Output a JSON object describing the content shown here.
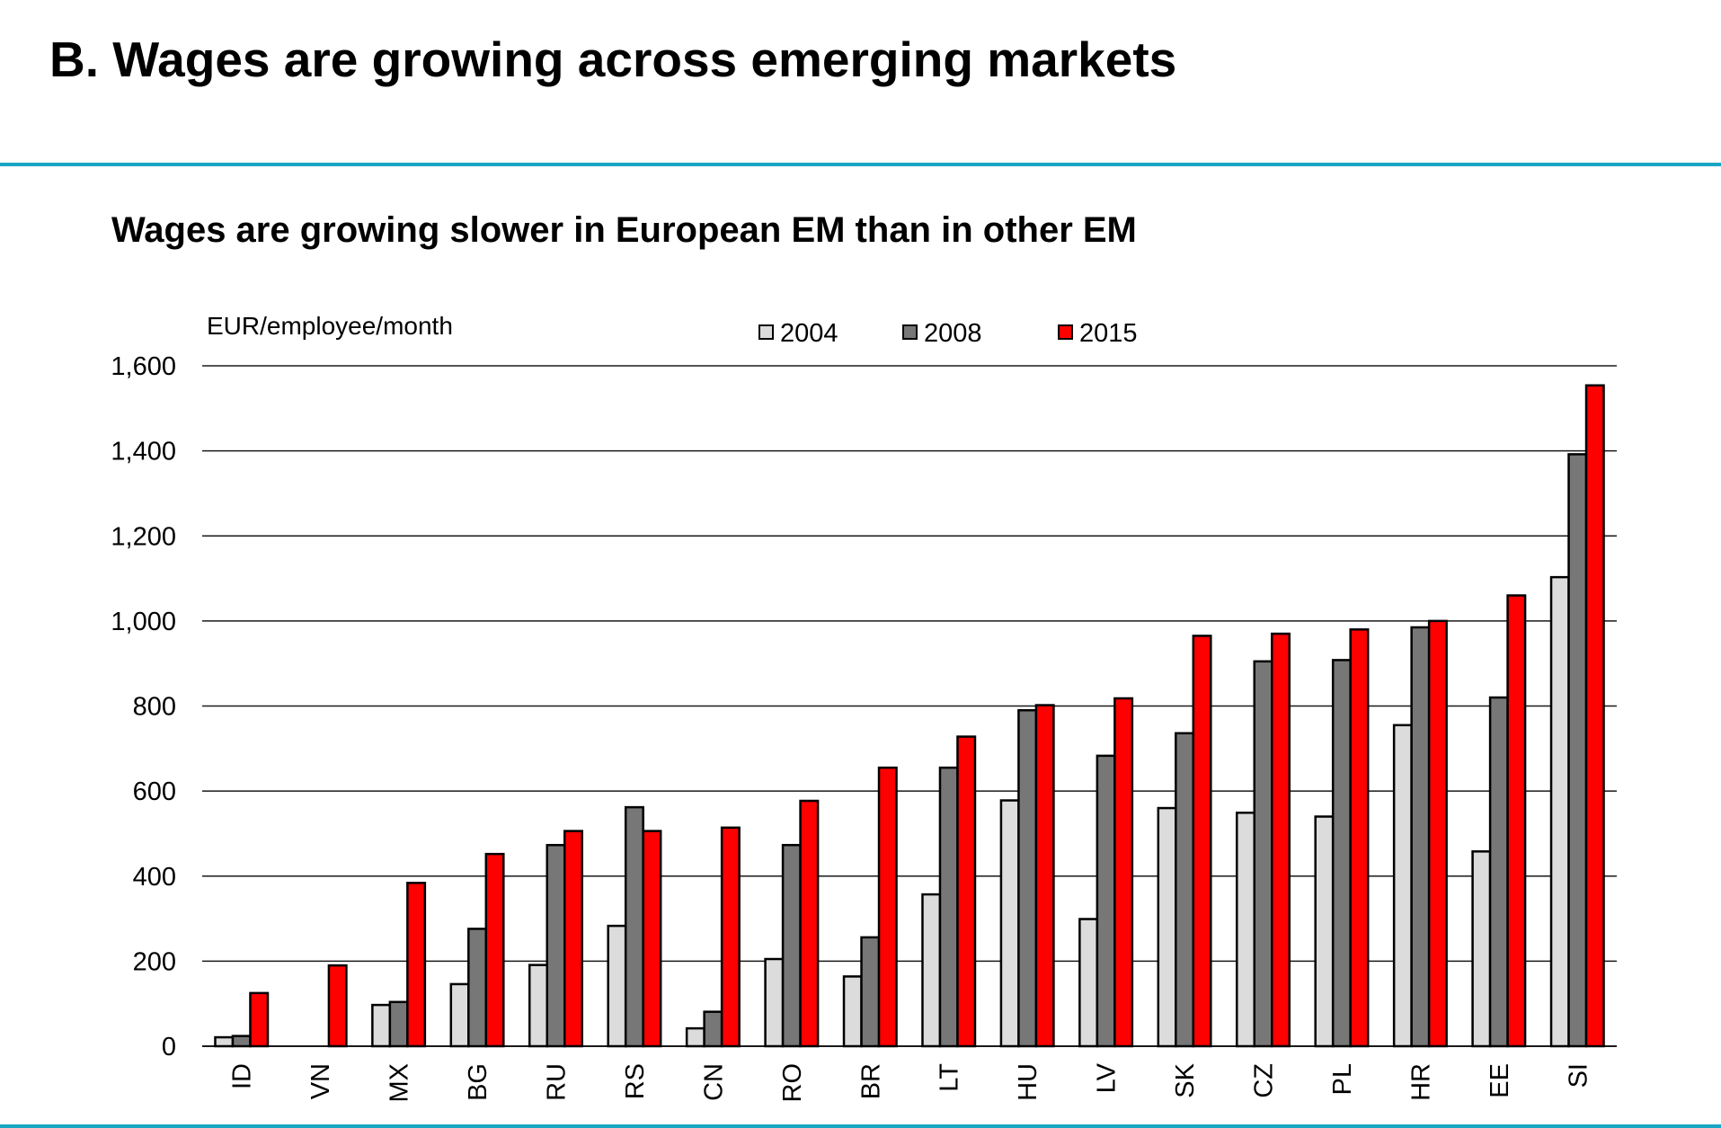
{
  "slide": {
    "title": "B. Wages are growing across emerging markets",
    "accent_color": "#19a6c4"
  },
  "chart_data": {
    "type": "bar",
    "title": "Wages are growing slower in European EM than in other EM",
    "ylabel": "EUR/employee/month",
    "xlabel": "",
    "ylim": [
      0,
      1600
    ],
    "yticks": [
      0,
      200,
      400,
      600,
      800,
      1000,
      1200,
      1400,
      1600
    ],
    "ytick_labels": [
      "0",
      "200",
      "400",
      "600",
      "800",
      "1,000",
      "1,200",
      "1,400",
      "1,600"
    ],
    "grid": true,
    "legend_position": "top",
    "categories": [
      "ID",
      "VN",
      "MX",
      "BG",
      "RU",
      "RS",
      "CN",
      "RO",
      "BR",
      "LT",
      "HU",
      "LV",
      "SK",
      "CZ",
      "PL",
      "HR",
      "EE",
      "SI"
    ],
    "series": [
      {
        "name": "2004",
        "color": "#dcdcdc",
        "values": [
          21,
          null,
          97,
          146,
          191,
          283,
          42,
          205,
          164,
          357,
          578,
          299,
          560,
          549,
          540,
          755,
          458,
          1103
        ]
      },
      {
        "name": "2008",
        "color": "#777777",
        "values": [
          24,
          null,
          104,
          276,
          473,
          562,
          81,
          473,
          256,
          655,
          790,
          683,
          736,
          905,
          908,
          985,
          820,
          1392
        ]
      },
      {
        "name": "2015",
        "color": "#ff0000",
        "values": [
          125,
          190,
          384,
          452,
          506,
          506,
          514,
          577,
          655,
          728,
          802,
          818,
          965,
          970,
          980,
          1000,
          1060,
          1554
        ]
      }
    ]
  }
}
